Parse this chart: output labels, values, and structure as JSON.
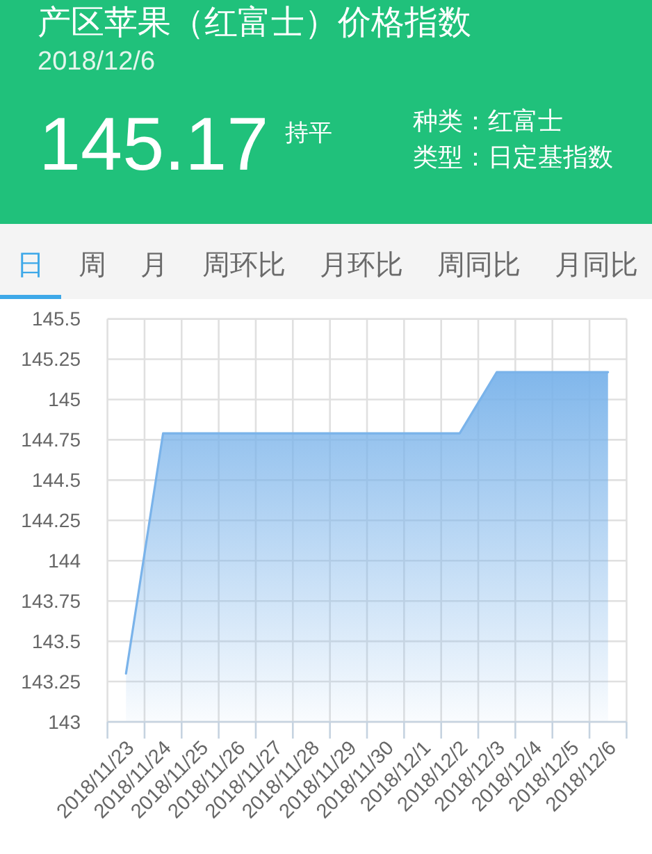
{
  "chart_data": {
    "type": "area",
    "title": "产区苹果（红富士）价格指数",
    "subtitle": "2018/12/6",
    "annotations": [
      "145.17",
      "持平",
      "种类：红富士",
      "类型：日定基指数",
      "日",
      "周",
      "月",
      "周环比",
      "月环比",
      "周同比",
      "月同比"
    ],
    "categories": [
      "2018/11/23",
      "2018/11/24",
      "2018/11/25",
      "2018/11/26",
      "2018/11/27",
      "2018/11/28",
      "2018/11/29",
      "2018/11/30",
      "2018/12/1",
      "2018/12/2",
      "2018/12/3",
      "2018/12/4",
      "2018/12/5",
      "2018/12/6"
    ],
    "series": [
      {
        "color": "#7ab3ea",
        "values": [
          143.3,
          144.79,
          144.79,
          144.79,
          144.79,
          144.79,
          144.79,
          144.79,
          144.79,
          144.79,
          145.17,
          145.17,
          145.17,
          145.17
        ]
      }
    ],
    "ylim": [
      143,
      145.5
    ],
    "yticks": [
      143,
      143.25,
      143.5,
      143.75,
      144,
      144.25,
      144.5,
      144.75,
      145,
      145.25,
      145.5
    ],
    "grid": true
  }
}
